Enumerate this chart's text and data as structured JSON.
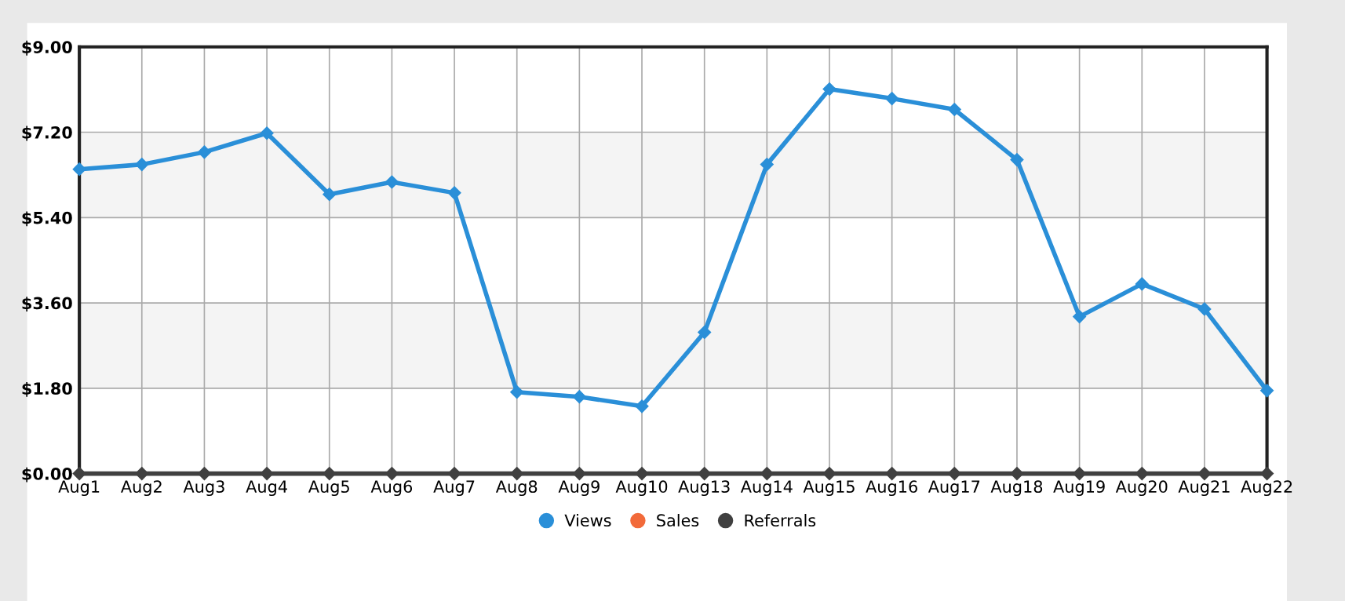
{
  "chart_data": {
    "type": "line",
    "categories": [
      "Aug1",
      "Aug2",
      "Aug3",
      "Aug4",
      "Aug5",
      "Aug6",
      "Aug7",
      "Aug8",
      "Aug9",
      "Aug10",
      "Aug13",
      "Aug14",
      "Aug15",
      "Aug16",
      "Aug17",
      "Aug18",
      "Aug19",
      "Aug20",
      "Aug21",
      "Aug22"
    ],
    "series": [
      {
        "name": "Views",
        "color": "#2a8fd8",
        "values": [
          6.42,
          6.52,
          6.78,
          7.18,
          5.89,
          6.15,
          5.92,
          1.72,
          1.62,
          1.42,
          2.98,
          6.52,
          8.11,
          7.91,
          7.68,
          6.62,
          3.31,
          4.0,
          3.47,
          1.75
        ]
      },
      {
        "name": "Sales",
        "color": "#f26a3a",
        "values": [
          null,
          null,
          null,
          null,
          null,
          null,
          null,
          null,
          null,
          null,
          null,
          null,
          null,
          null,
          null,
          null,
          null,
          null,
          null,
          null
        ]
      },
      {
        "name": "Referrals",
        "color": "#404040",
        "values": [
          0,
          0,
          0,
          0,
          0,
          0,
          0,
          0,
          0,
          0,
          0,
          0,
          0,
          0,
          0,
          0,
          0,
          0,
          0,
          0
        ]
      }
    ],
    "ylim": [
      0,
      9
    ],
    "yticks": [
      {
        "value": 0,
        "label": "$0.00"
      },
      {
        "value": 1.8,
        "label": "$1.80"
      },
      {
        "value": 3.6,
        "label": "$3.60"
      },
      {
        "value": 5.4,
        "label": "$5.40"
      },
      {
        "value": 7.2,
        "label": "$7.20"
      },
      {
        "value": 9,
        "label": "$9.00"
      }
    ],
    "bands": [
      {
        "axis": "y",
        "from": 1.8,
        "to": 3.6,
        "color": "#f4f4f4"
      },
      {
        "axis": "y",
        "from": 5.4,
        "to": 7.2,
        "color": "#f4f4f4"
      }
    ],
    "grid": true,
    "legend": "bottom",
    "marker": "diamond",
    "line_style": "solid"
  }
}
